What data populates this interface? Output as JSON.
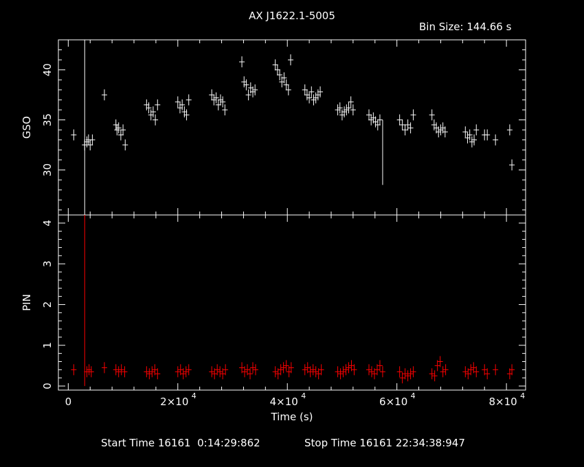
{
  "title": "AX J1622.1-5005",
  "bin_size": "Bin Size: 144.66 s",
  "footer": {
    "start": "Start Time 16161  0:14:29:862",
    "stop": "Stop Time 16161 22:34:38:947"
  },
  "colors": {
    "gso": "#ffffff",
    "pin": "#ff0000",
    "axes": "#ffffff",
    "background": "#000000"
  },
  "chart_data": [
    {
      "type": "line",
      "panel": "top",
      "ylabel": "GSO",
      "ylim": [
        25.5,
        43
      ],
      "yticks": [
        30,
        35,
        40
      ],
      "xlim": [
        -1800,
        83500
      ],
      "series": [
        {
          "color": "#ffffff",
          "x": [
            1000,
            3000,
            3400,
            3700,
            4000,
            4400,
            6600,
            8700,
            8900,
            9200,
            9600,
            10000,
            10400,
            14300,
            14700,
            15100,
            15500,
            15900,
            16300,
            20000,
            20400,
            20800,
            21200,
            21600,
            22000,
            26200,
            26600,
            27000,
            27400,
            27800,
            28200,
            28600,
            31700,
            32100,
            32500,
            32900,
            33300,
            33700,
            34100,
            37800,
            38200,
            38600,
            39000,
            39400,
            39800,
            40200,
            40600,
            43200,
            43600,
            44000,
            44400,
            44800,
            45200,
            45600,
            46000,
            49200,
            49600,
            50000,
            50400,
            50800,
            51200,
            51600,
            52000,
            54900,
            55300,
            55700,
            56100,
            56500,
            56900,
            57400,
            60500,
            61000,
            61500,
            62000,
            62500,
            63000,
            66400,
            66800,
            67200,
            67600,
            68000,
            68400,
            68800,
            72500,
            72900,
            73300,
            73700,
            74100,
            74500,
            76000,
            76500,
            78000,
            80600,
            81000
          ],
          "values": [
            33.5,
            32.5,
            32.8,
            33.0,
            32.5,
            33.0,
            37.5,
            34.5,
            34.0,
            34.2,
            33.5,
            34.0,
            32.5,
            36.5,
            36.2,
            35.5,
            35.8,
            35.0,
            36.5,
            36.8,
            36.2,
            36.5,
            35.8,
            35.5,
            37.0,
            37.5,
            37.0,
            37.2,
            36.5,
            37.0,
            36.8,
            36.0,
            40.8,
            38.8,
            38.5,
            37.5,
            38.2,
            37.8,
            38.0,
            40.5,
            40.0,
            39.5,
            38.8,
            39.2,
            38.5,
            38.0,
            41.0,
            38.0,
            37.5,
            37.2,
            37.8,
            37.0,
            37.2,
            37.5,
            37.8,
            36.0,
            36.2,
            35.5,
            35.8,
            36.0,
            36.2,
            36.8,
            36.0,
            35.5,
            35.0,
            35.2,
            34.8,
            34.5,
            35.0,
            28.5,
            35.0,
            34.5,
            34.0,
            34.5,
            34.2,
            35.5,
            35.5,
            34.5,
            34.2,
            33.8,
            34.0,
            34.2,
            33.8,
            33.8,
            33.2,
            33.5,
            32.8,
            33.0,
            34.0,
            33.5,
            33.5,
            33.0,
            34.0,
            30.5
          ]
        }
      ]
    },
    {
      "type": "line",
      "panel": "bottom",
      "xlabel": "Time (s)",
      "ylabel": "PIN",
      "ylim": [
        -0.1,
        4.2
      ],
      "yticks": [
        0,
        1,
        2,
        3,
        4
      ],
      "xlim": [
        -1800,
        83500
      ],
      "xticks": [
        0,
        20000,
        40000,
        60000,
        80000
      ],
      "xtick_labels": [
        "0",
        "2×10",
        "4×10",
        "6×10",
        "8×10"
      ],
      "xtick_exponent": "4",
      "series": [
        {
          "color": "#ff0000",
          "x": [
            1000,
            3000,
            3400,
            3800,
            4200,
            6600,
            8700,
            9200,
            9700,
            10300,
            14300,
            14800,
            15300,
            15800,
            16300,
            20000,
            20500,
            21000,
            21500,
            22000,
            26200,
            26700,
            27200,
            27700,
            28200,
            28700,
            31700,
            32200,
            32700,
            33200,
            33700,
            34200,
            37800,
            38300,
            38800,
            39300,
            39800,
            40300,
            40700,
            43200,
            43700,
            44200,
            44700,
            45200,
            45700,
            46200,
            49200,
            49700,
            50200,
            50700,
            51200,
            51700,
            52200,
            54900,
            55400,
            55900,
            56400,
            56900,
            57400,
            60500,
            61000,
            61500,
            62000,
            62500,
            63000,
            66400,
            66900,
            67400,
            67900,
            68400,
            68900,
            72500,
            73000,
            73500,
            74000,
            74500,
            76000,
            76500,
            78000,
            80600,
            81000
          ],
          "values": [
            0.4,
            4.2,
            0.35,
            0.4,
            0.35,
            0.45,
            0.4,
            0.35,
            0.4,
            0.35,
            0.35,
            0.3,
            0.35,
            0.4,
            0.3,
            0.35,
            0.4,
            0.3,
            0.35,
            0.4,
            0.35,
            0.3,
            0.4,
            0.35,
            0.3,
            0.4,
            0.45,
            0.35,
            0.4,
            0.3,
            0.45,
            0.4,
            0.35,
            0.3,
            0.4,
            0.45,
            0.5,
            0.35,
            0.45,
            0.4,
            0.45,
            0.35,
            0.4,
            0.35,
            0.3,
            0.4,
            0.35,
            0.3,
            0.35,
            0.4,
            0.45,
            0.5,
            0.4,
            0.4,
            0.35,
            0.3,
            0.4,
            0.5,
            0.35,
            0.35,
            0.2,
            0.3,
            0.25,
            0.3,
            0.35,
            0.3,
            0.25,
            0.5,
            0.6,
            0.35,
            0.4,
            0.35,
            0.3,
            0.4,
            0.45,
            0.35,
            0.4,
            0.3,
            0.4,
            0.3,
            0.4
          ]
        }
      ]
    }
  ]
}
